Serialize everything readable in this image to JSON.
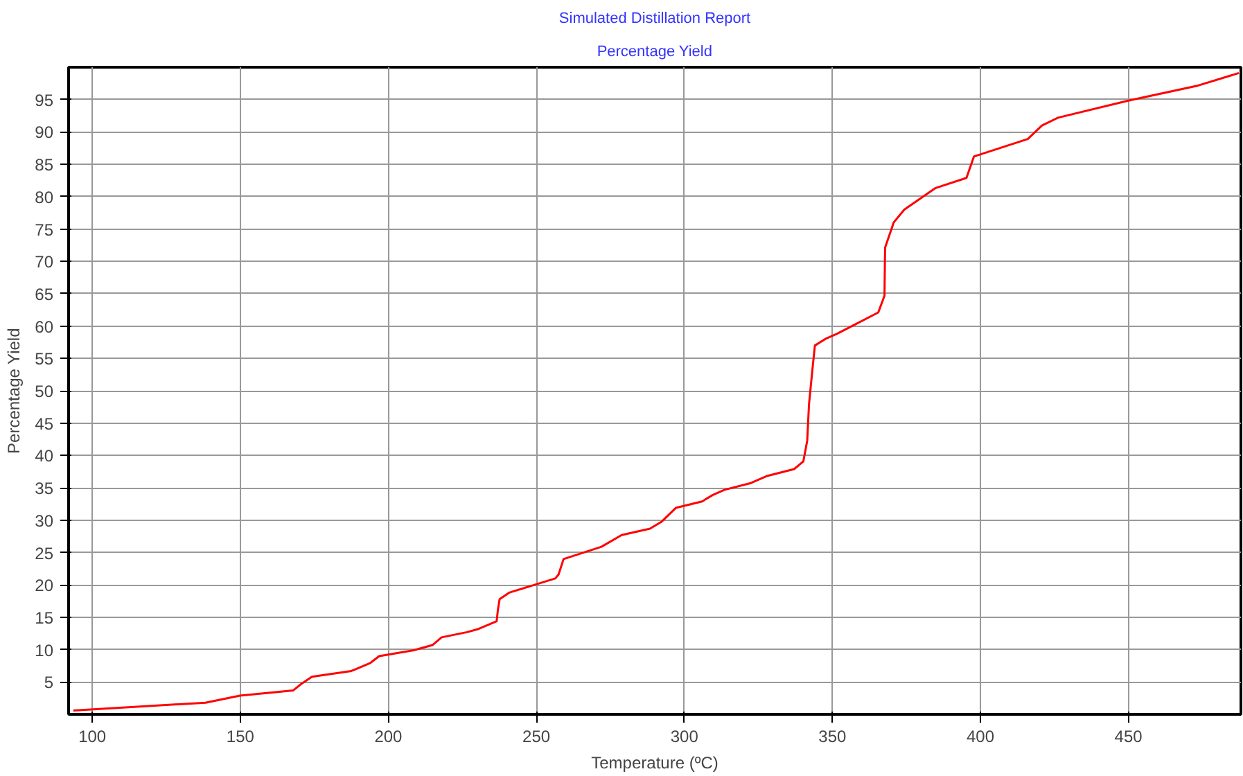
{
  "chart_data": {
    "type": "line",
    "title": "Simulated Distillation Report",
    "subtitle": "Percentage Yield",
    "xlabel": "Temperature (ºC)",
    "ylabel": "Percentage Yield",
    "series": [
      {
        "color": "#ff0000",
        "x": [
          93.6,
          138.2,
          149.9,
          167.9,
          170.3,
          174.2,
          187.5,
          193.8,
          196.9,
          208.6,
          214.9,
          218,
          226.6,
          230.5,
          236.6,
          237,
          237.6,
          240.8,
          256.4,
          257.5,
          259.2,
          272,
          278.8,
          288.4,
          292.4,
          297.1,
          306,
          309.6,
          313.6,
          322.2,
          327.7,
          337.1,
          340.2,
          341.5,
          342.1,
          343.3,
          344.1,
          348,
          351.5,
          356.6,
          365.5,
          367.6,
          367.8,
          370.7,
          374.3,
          384.7,
          395.3,
          397.8,
          416,
          420.8,
          426.2,
          449.7,
          473,
          487.3
        ],
        "values": [
          0.6,
          1.8,
          2.9,
          3.7,
          4.6,
          5.8,
          6.7,
          7.9,
          9,
          9.9,
          10.7,
          11.9,
          12.7,
          13.2,
          14.4,
          16.1,
          17.8,
          18.8,
          21,
          21.6,
          24,
          25.9,
          27.7,
          28.7,
          29.8,
          31.9,
          32.9,
          33.9,
          34.7,
          35.7,
          36.8,
          37.9,
          39.1,
          42.3,
          47.9,
          53.5,
          57,
          58.1,
          58.8,
          60,
          62.1,
          64.7,
          72.1,
          76,
          78,
          81.3,
          82.9,
          86.2,
          88.9,
          91,
          92.2,
          94.8,
          97.1,
          99.1
        ]
      }
    ],
    "xlim": [
      92,
      488
    ],
    "ylim": [
      0,
      100
    ],
    "xticks": [
      100,
      150,
      200,
      250,
      300,
      350,
      400,
      450
    ],
    "yticks": [
      5,
      10,
      15,
      20,
      25,
      30,
      35,
      40,
      45,
      50,
      55,
      60,
      65,
      70,
      75,
      80,
      85,
      90,
      95
    ],
    "grid": true,
    "line_style": "solid"
  }
}
